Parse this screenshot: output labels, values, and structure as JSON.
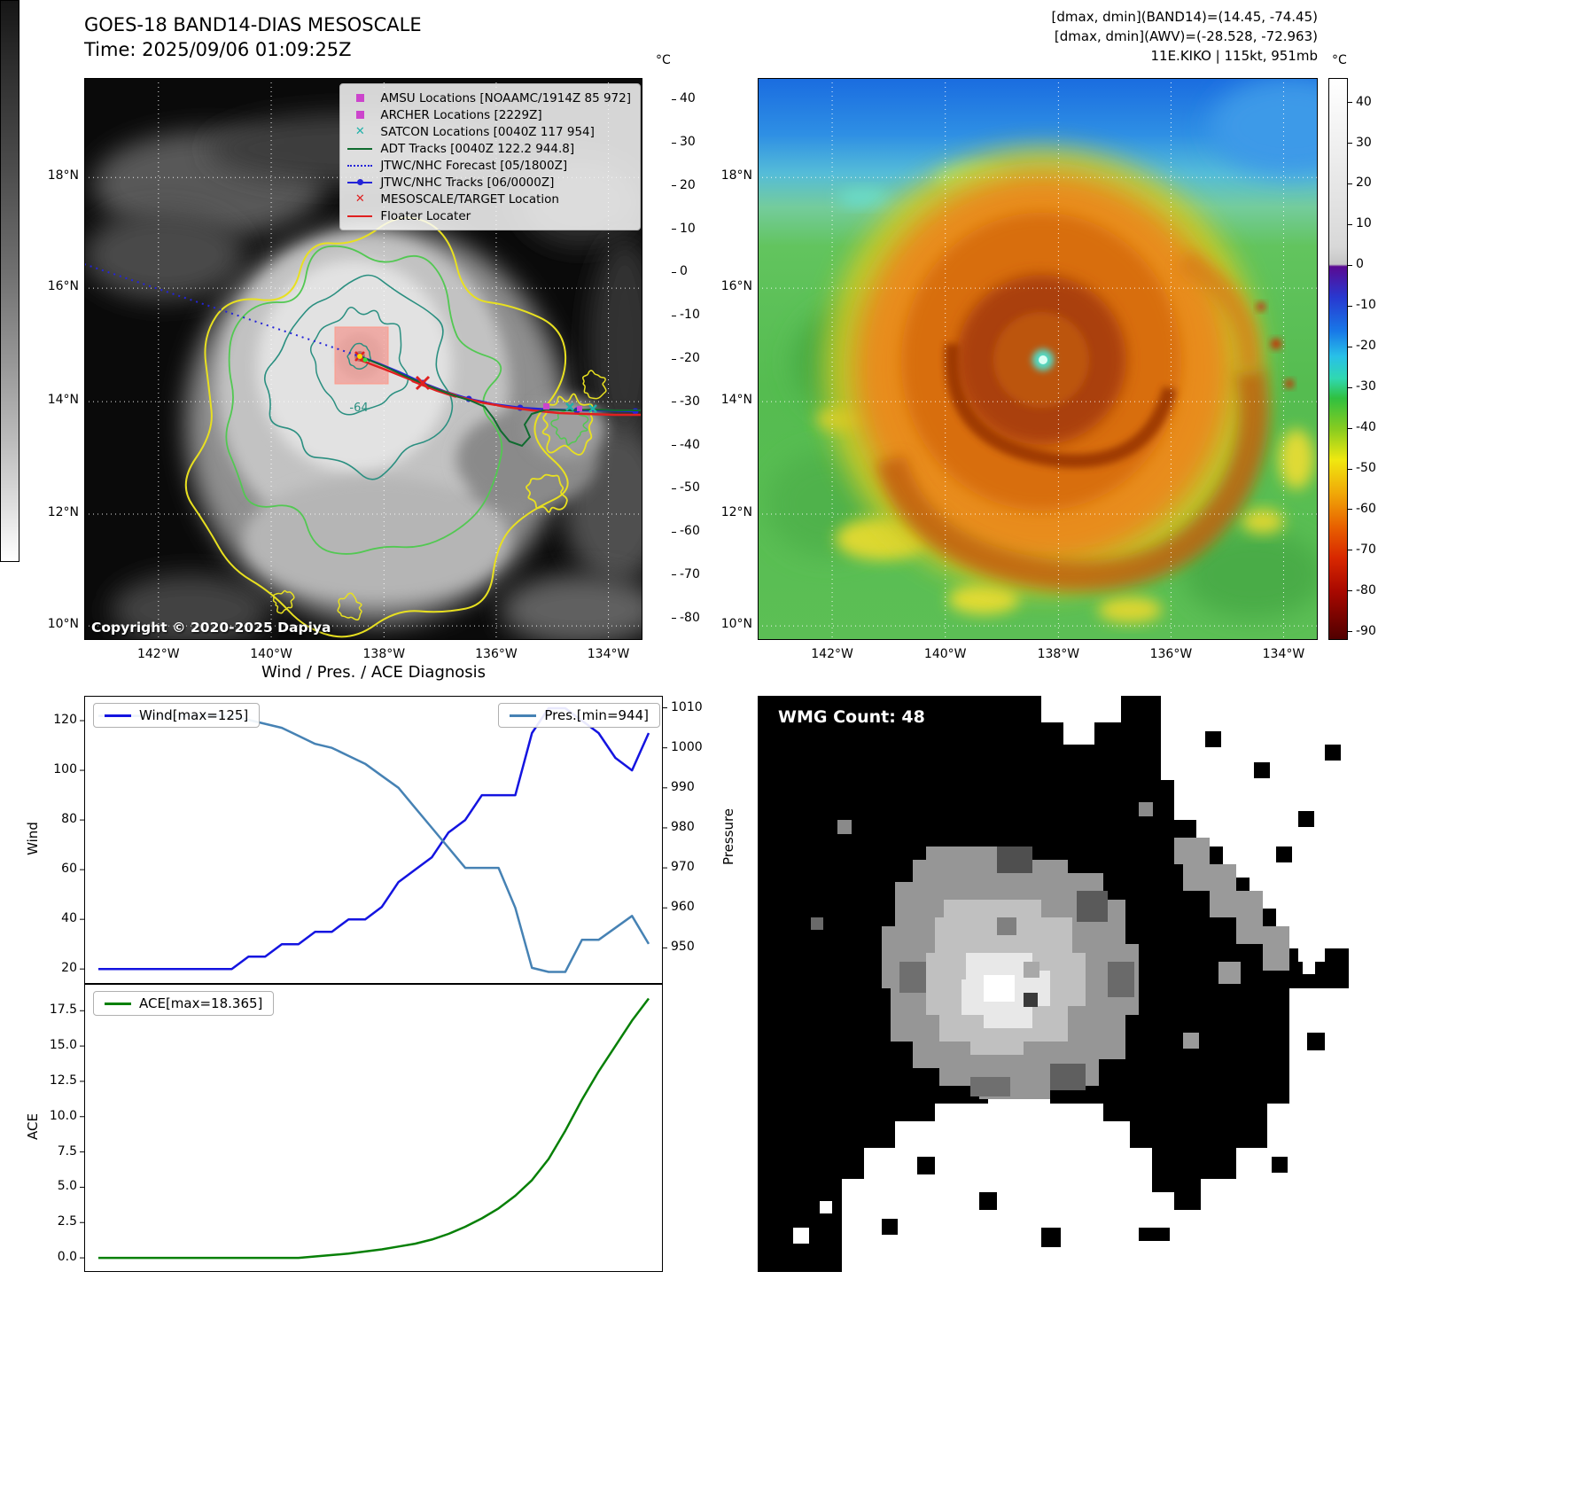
{
  "goes_panel": {
    "title": "GOES-18 BAND14-DIAS MESOSCALE",
    "time_line": "Time: 2025/09/06 01:09:25Z",
    "copyright": "Copyright © 2020-2025 Dapiya",
    "contour_label": "-64",
    "colorbar_unit": "°C",
    "colorbar_ticks": [
      40,
      30,
      20,
      10,
      0,
      -10,
      -20,
      -30,
      -40,
      -50,
      -60,
      -70,
      -80
    ],
    "lat_ticks": [
      "18°N",
      "16°N",
      "14°N",
      "12°N",
      "10°N"
    ],
    "lon_ticks": [
      "142°W",
      "140°W",
      "138°W",
      "136°W",
      "134°W"
    ],
    "legend_items": [
      {
        "label": "AMSU Locations [NOAAMC/1914Z 85 972]",
        "type": "square",
        "color": "#cc44cc"
      },
      {
        "label": "ARCHER Locations [2229Z]",
        "type": "square",
        "color": "#cc44cc"
      },
      {
        "label": "SATCON Locations [0040Z 117 954]",
        "type": "x",
        "color": "#20b2aa"
      },
      {
        "label": "ADT Tracks [0040Z 122.2 944.8]",
        "type": "line",
        "color": "#0f6b2f"
      },
      {
        "label": "JTWC/NHC Forecast [05/1800Z]",
        "type": "dotted",
        "color": "#2424d8"
      },
      {
        "label": "JTWC/NHC Tracks [06/0000Z]",
        "type": "line-dot",
        "color": "#2424d8"
      },
      {
        "label": "MESOSCALE/TARGET Location",
        "type": "x",
        "color": "#e02020"
      },
      {
        "label": "Floater Locater",
        "type": "line",
        "color": "#e02020"
      }
    ]
  },
  "awv_panel": {
    "info_lines": [
      "[dmax, dmin](BAND14)=(14.45, -74.45)",
      "[dmax, dmin](AWV)=(-28.528, -72.963)",
      "11E.KIKO | 115kt, 951mb"
    ],
    "colorbar_unit": "°C",
    "colorbar_ticks": [
      40,
      30,
      20,
      10,
      0,
      -10,
      -20,
      -30,
      -40,
      -50,
      -60,
      -70,
      -80,
      -90
    ],
    "lat_ticks": [
      "18°N",
      "16°N",
      "14°N",
      "12°N",
      "10°N"
    ],
    "lon_ticks": [
      "142°W",
      "140°W",
      "138°W",
      "136°W",
      "134°W"
    ]
  },
  "diagnosis": {
    "title": "Wind / Pres. / ACE Diagnosis"
  },
  "wmg_panel": {
    "label": "WMG Count: 48"
  },
  "chart_data": [
    {
      "type": "line",
      "title": "Wind / Pres. / ACE Diagnosis (wind and pressure traces)",
      "x_desc": "time steps (no x tick labels shown)",
      "series": [
        {
          "name": "Wind[max=125]",
          "yaxis": "left",
          "color": "#1414e0",
          "values": [
            20,
            20,
            20,
            20,
            20,
            20,
            20,
            20,
            20,
            25,
            25,
            30,
            30,
            35,
            35,
            40,
            40,
            45,
            55,
            60,
            65,
            75,
            80,
            90,
            90,
            90,
            115,
            125,
            125,
            120,
            115,
            105,
            100,
            115
          ]
        },
        {
          "name": "Pres.[min=944]",
          "yaxis": "right",
          "color": "#4682b4",
          "values": [
            1008,
            1008,
            1008,
            1008,
            1008,
            1008,
            1008,
            1008,
            1008,
            1007,
            1006,
            1005,
            1003,
            1001,
            1000,
            998,
            996,
            993,
            990,
            985,
            980,
            975,
            970,
            970,
            970,
            960,
            945,
            944,
            944,
            952,
            952,
            955,
            958,
            951
          ]
        }
      ],
      "left_axis": {
        "label": "Wind",
        "ticks": [
          20,
          40,
          60,
          80,
          100,
          120
        ],
        "lim": [
          14,
          130
        ]
      },
      "right_axis": {
        "label": "Pressure",
        "ticks": [
          950,
          960,
          970,
          980,
          990,
          1000,
          1010
        ],
        "lim": [
          941,
          1013
        ]
      }
    },
    {
      "type": "line",
      "title": "ACE trace",
      "x_desc": "time steps (no x tick labels shown)",
      "series": [
        {
          "name": "ACE[max=18.365]",
          "yaxis": "left",
          "color": "#078007",
          "values": [
            0,
            0,
            0,
            0,
            0,
            0,
            0,
            0,
            0,
            0,
            0,
            0,
            0,
            0.1,
            0.2,
            0.3,
            0.45,
            0.6,
            0.8,
            1.0,
            1.3,
            1.7,
            2.2,
            2.8,
            3.5,
            4.4,
            5.5,
            7.0,
            9.0,
            11.2,
            13.2,
            15.0,
            16.8,
            18.365
          ]
        }
      ],
      "left_axis": {
        "label": "ACE",
        "ticks": [
          0,
          2.5,
          5,
          7.5,
          10,
          12.5,
          15,
          17.5
        ],
        "lim": [
          -1,
          19.4
        ]
      }
    }
  ]
}
